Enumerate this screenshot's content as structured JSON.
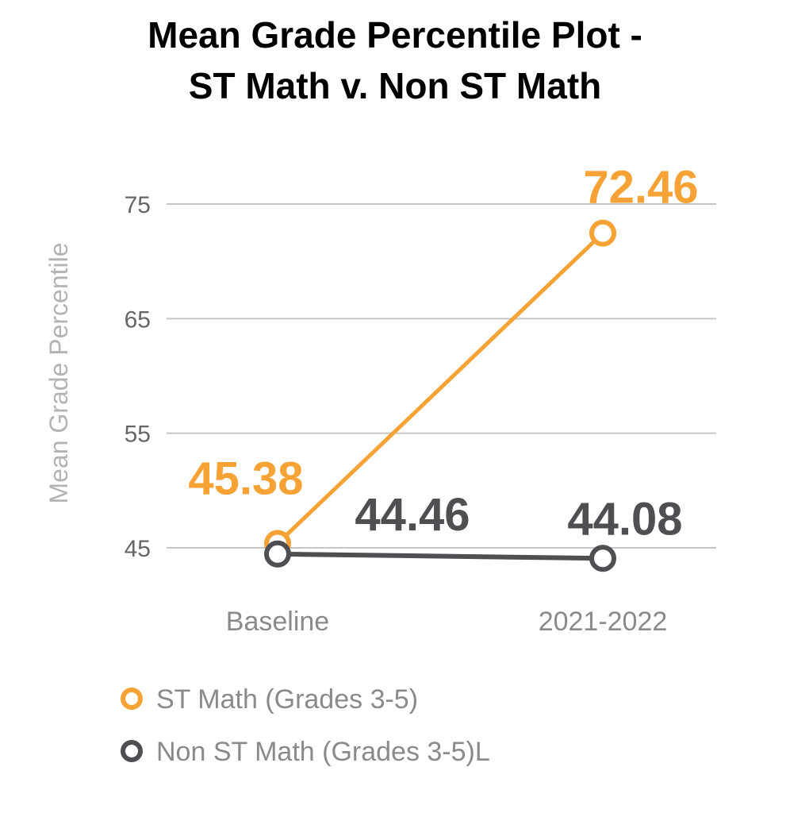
{
  "chart_data": {
    "type": "line",
    "title_lines": [
      "Mean Grade Percentile Plot -",
      "ST Math v. Non ST Math"
    ],
    "ylabel": "Mean Grade Percentile",
    "xlabel": "",
    "categories": [
      "Baseline",
      "2021-2022"
    ],
    "y_ticks": [
      45,
      55,
      65,
      75
    ],
    "ylim": [
      43,
      76
    ],
    "grid": true,
    "legend_position": "bottom-left",
    "series": [
      {
        "name": "ST Math (Grades 3-5)",
        "values": [
          45.38,
          72.46
        ],
        "labels": [
          "45.38",
          "72.46"
        ],
        "color": "#f7a234"
      },
      {
        "name": "Non ST Math (Grades 3-5)L",
        "values": [
          44.46,
          44.08
        ],
        "labels": [
          "44.46",
          "44.08"
        ],
        "color": "#4d4f53"
      }
    ]
  },
  "colors": {
    "grid": "#c6c6c6",
    "background": "#ffffff"
  }
}
